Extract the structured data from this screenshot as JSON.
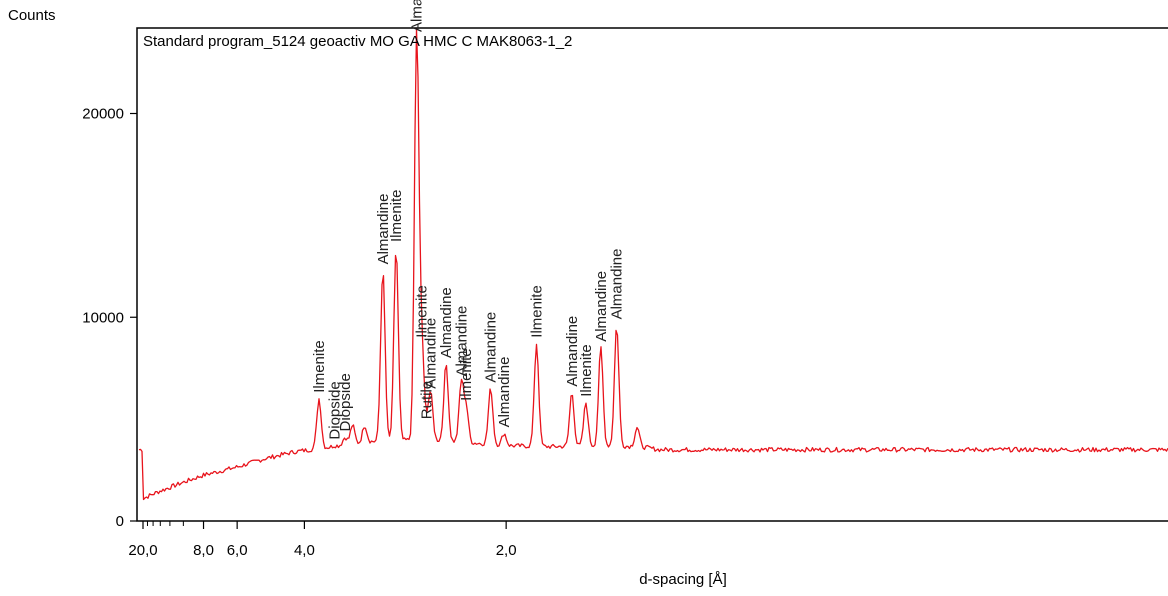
{
  "chart_data": {
    "type": "line",
    "title": "Standard program_5124 geoactiv MO GA HMC C MAK8063-1_2",
    "xlabel": "d-spacing [Å]",
    "ylabel": "Counts",
    "x_scale": "reciprocal",
    "ylim": [
      0,
      24000
    ],
    "y_ticks": [
      {
        "value": 0,
        "label": "0"
      },
      {
        "value": 10000,
        "label": "10000"
      },
      {
        "value": 20000,
        "label": "20000"
      }
    ],
    "x_ticks": [
      {
        "value": 20.0,
        "label": "20,0"
      },
      {
        "value": 8.0,
        "label": "8,0"
      },
      {
        "value": 6.0,
        "label": "6,0"
      },
      {
        "value": 4.0,
        "label": "4,0"
      },
      {
        "value": 2.0,
        "label": "2,0"
      }
    ],
    "x_minor_ticks": [
      18,
      16,
      14,
      12,
      10
    ],
    "series": [
      {
        "color": "#e8141c",
        "baseline": [
          [
            20.0,
            1100
          ],
          [
            15.0,
            1400
          ],
          [
            10.0,
            1900
          ],
          [
            8.0,
            2250
          ],
          [
            6.0,
            2650
          ],
          [
            5.0,
            3050
          ],
          [
            4.2,
            3400
          ],
          [
            3.5,
            3650
          ],
          [
            3.0,
            3900
          ],
          [
            2.5,
            4000
          ],
          [
            2.2,
            3850
          ],
          [
            2.0,
            3700
          ],
          [
            1.8,
            3650
          ],
          [
            1.6,
            3700
          ],
          [
            1.5,
            3650
          ],
          [
            1.45,
            3500
          ]
        ],
        "peaks": [
          {
            "d": 3.73,
            "counts": 6000,
            "label": "Ilmenite"
          },
          {
            "d": 3.48,
            "counts": 3700,
            "label": "Diopside"
          },
          {
            "d": 3.33,
            "counts": 4100,
            "label": "Diopside"
          },
          {
            "d": 3.23,
            "counts": 4700,
            "label": ""
          },
          {
            "d": 3.08,
            "counts": 4700,
            "label": ""
          },
          {
            "d": 2.88,
            "counts": 12300,
            "label": "Almandine"
          },
          {
            "d": 2.75,
            "counts": 13400,
            "label": "Ilmenite"
          },
          {
            "d": 2.57,
            "counts": 23900,
            "label": "Almandine"
          },
          {
            "d": 2.53,
            "counts": 8700,
            "label": "Ilmenite"
          },
          {
            "d": 2.49,
            "counts": 4700,
            "label": "Rutile"
          },
          {
            "d": 2.46,
            "counts": 6200,
            "label": "Almandine"
          },
          {
            "d": 2.35,
            "counts": 7700,
            "label": "Almandine"
          },
          {
            "d": 2.25,
            "counts": 6800,
            "label": "Almandine"
          },
          {
            "d": 2.22,
            "counts": 5600,
            "label": "Ilmenite"
          },
          {
            "d": 2.08,
            "counts": 6500,
            "label": "Almandine"
          },
          {
            "d": 2.01,
            "counts": 4300,
            "label": "Almandine"
          },
          {
            "d": 1.86,
            "counts": 8700,
            "label": "Ilmenite"
          },
          {
            "d": 1.72,
            "counts": 6300,
            "label": "Almandine"
          },
          {
            "d": 1.67,
            "counts": 5800,
            "label": "Ilmenite"
          },
          {
            "d": 1.62,
            "counts": 8500,
            "label": "Almandine"
          },
          {
            "d": 1.57,
            "counts": 9600,
            "label": "Almandine"
          },
          {
            "d": 1.51,
            "counts": 4600,
            "label": ""
          }
        ]
      }
    ],
    "grid": false,
    "legend": "none"
  }
}
